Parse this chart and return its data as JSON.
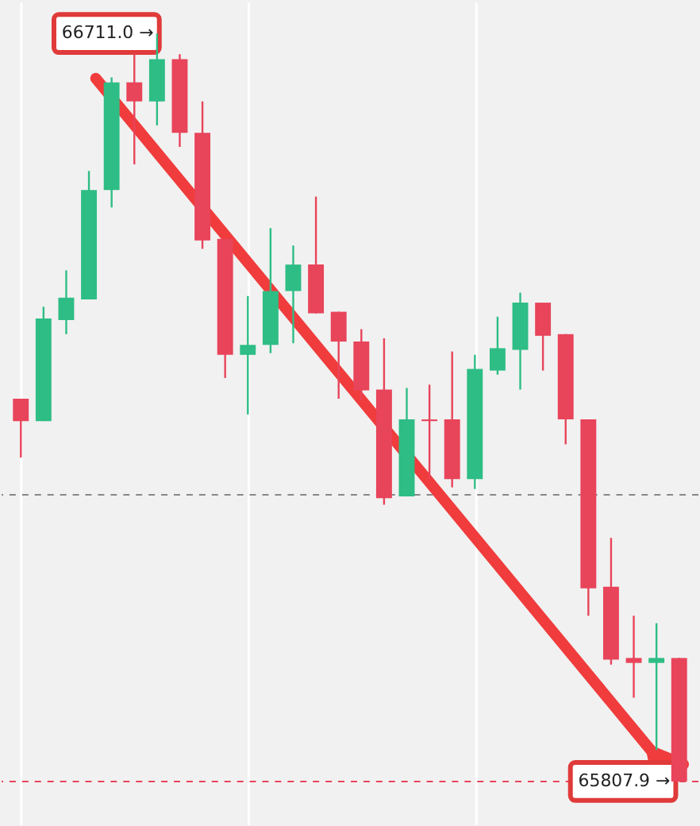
{
  "chart_data": {
    "type": "candlestick",
    "categories": [
      null,
      null,
      null,
      null,
      null,
      null,
      null,
      null,
      null,
      null,
      null,
      null,
      null,
      null,
      null,
      null,
      null,
      null,
      null,
      null,
      null,
      null,
      null,
      null,
      null,
      null,
      null,
      null,
      null,
      null
    ],
    "ohlc": [
      [
        66270,
        66270,
        66199,
        66243
      ],
      [
        66243,
        66381,
        66243,
        66367
      ],
      [
        66365,
        66425,
        66348,
        66392
      ],
      [
        66390,
        66545,
        66390,
        66522
      ],
      [
        66522,
        66658,
        66501,
        66652
      ],
      [
        66652,
        66686,
        66553,
        66629
      ],
      [
        66629,
        66711.0,
        66600,
        66680
      ],
      [
        66680,
        66686,
        66574,
        66591
      ],
      [
        66591,
        66629,
        66451,
        66461
      ],
      [
        66463,
        66463,
        66295,
        66323
      ],
      [
        66323,
        66394,
        66251,
        66335
      ],
      [
        66335,
        66476,
        66325,
        66400
      ],
      [
        66400,
        66455,
        66337,
        66432
      ],
      [
        66432,
        66514,
        66373,
        66373
      ],
      [
        66375,
        66375,
        66270,
        66339
      ],
      [
        66339,
        66354,
        66268,
        66280
      ],
      [
        66281,
        66343,
        66142,
        66150
      ],
      [
        66152,
        66283,
        66152,
        66245
      ],
      [
        66245,
        66287,
        66173,
        66243
      ],
      [
        66245,
        66327,
        66163,
        66173
      ],
      [
        66173,
        66323,
        66161,
        66306
      ],
      [
        66304,
        66369,
        66299,
        66331
      ],
      [
        66329,
        66398,
        66281,
        66386
      ],
      [
        66386,
        66386,
        66304,
        66346
      ],
      [
        66348,
        66348,
        66215,
        66245
      ],
      [
        66245,
        66245,
        66008,
        66041
      ],
      [
        66043,
        66102,
        65949,
        65955
      ],
      [
        65957,
        66008,
        65909,
        65951
      ],
      [
        65951,
        65999,
        65846,
        65957
      ],
      [
        65957,
        65957,
        65807.9,
        65807.9
      ]
    ],
    "colors": [
      "#e8445a",
      "#2ebd85",
      "#2ebd85",
      "#2ebd85",
      "#2ebd85",
      "#e8445a",
      "#2ebd85",
      "#e8445a",
      "#e8445a",
      "#e8445a",
      "#2ebd85",
      "#2ebd85",
      "#2ebd85",
      "#e8445a",
      "#e8445a",
      "#e8445a",
      "#e8445a",
      "#2ebd85",
      "#e8445a",
      "#e8445a",
      "#2ebd85",
      "#2ebd85",
      "#2ebd85",
      "#e8445a",
      "#e8445a",
      "#e8445a",
      "#e8445a",
      "#e8445a",
      "#2ebd85",
      "#e8445a"
    ],
    "annotations": [
      "66711.0 →",
      "65807.9 →"
    ],
    "ref_lines": [
      {
        "axis": "y",
        "value": 65807.9,
        "color": "#e8445a",
        "line_style": "dashed"
      },
      {
        "axis": "y",
        "value": 66154,
        "color": "#888888",
        "line_style": "dashed"
      }
    ],
    "grid": true,
    "tick_labels": false
  }
}
